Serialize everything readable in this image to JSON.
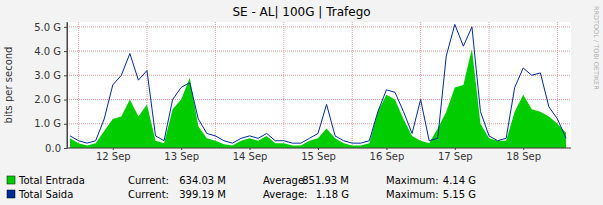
{
  "chart_data": {
    "type": "area",
    "title": "SE - AL| 100G | Trafego",
    "y_label": "bits per second",
    "watermark": "RRDTOOL / TOBI OETIKER",
    "categories": [
      null,
      null,
      null,
      null,
      null,
      "12 Sep",
      null,
      null,
      null,
      null,
      null,
      null,
      null,
      "13 Sep",
      null,
      null,
      null,
      null,
      null,
      null,
      null,
      "14 Sep",
      null,
      null,
      null,
      null,
      null,
      null,
      null,
      "15 Sep",
      null,
      null,
      null,
      null,
      null,
      null,
      null,
      "16 Sep",
      null,
      null,
      null,
      null,
      null,
      null,
      null,
      "17 Sep",
      null,
      null,
      null,
      null,
      null,
      null,
      null,
      "18 Sep",
      null,
      null,
      null,
      null,
      null
    ],
    "series": [
      {
        "name": "Total Entrada",
        "type": "area",
        "color": "#00cc00",
        "values": [
          0.4,
          0.2,
          0.1,
          0.2,
          0.7,
          1.2,
          1.3,
          2.0,
          1.3,
          1.8,
          0.3,
          0.2,
          1.6,
          2.0,
          2.9,
          0.9,
          0.4,
          0.3,
          0.15,
          0.1,
          0.3,
          0.4,
          0.3,
          0.5,
          0.2,
          0.2,
          0.1,
          0.1,
          0.3,
          0.4,
          0.8,
          0.4,
          0.2,
          0.1,
          0.1,
          0.2,
          1.5,
          2.2,
          2.0,
          1.2,
          0.5,
          0.3,
          0.2,
          0.8,
          1.5,
          2.5,
          2.6,
          4.1,
          1.0,
          0.4,
          0.3,
          0.3,
          1.5,
          2.2,
          1.6,
          1.5,
          1.3,
          1.0,
          0.63
        ],
        "stats": [
          "634.03 M",
          "851.93 M",
          "4.14 G"
        ]
      },
      {
        "name": "Total Saida",
        "type": "line",
        "color": "#002a97",
        "values": [
          0.5,
          0.3,
          0.2,
          0.3,
          1.2,
          2.6,
          3.0,
          3.9,
          2.8,
          3.2,
          0.5,
          0.3,
          2.0,
          2.5,
          2.7,
          1.2,
          0.6,
          0.5,
          0.3,
          0.2,
          0.4,
          0.5,
          0.4,
          0.6,
          0.3,
          0.3,
          0.2,
          0.2,
          0.4,
          0.6,
          1.8,
          0.5,
          0.3,
          0.2,
          0.2,
          0.3,
          1.5,
          2.4,
          2.3,
          1.5,
          0.6,
          2.0,
          0.3,
          0.4,
          3.8,
          5.1,
          4.2,
          5.0,
          1.5,
          0.5,
          0.3,
          0.4,
          2.5,
          3.3,
          3.0,
          3.1,
          1.7,
          1.2,
          0.4
        ],
        "stats": [
          "399.19 M",
          "1.18 G",
          "5.15 G"
        ]
      }
    ],
    "stat_labels": [
      "Current:",
      "Average:",
      "Maximum:"
    ],
    "ylim": [
      0,
      5.2
    ],
    "yticks": [
      {
        "value": 0,
        "label": "0.0"
      },
      {
        "value": 1,
        "label": "1.0 G"
      },
      {
        "value": 2,
        "label": "2.0 G"
      },
      {
        "value": 3,
        "label": "3.0 G"
      },
      {
        "value": 4,
        "label": "4.0 G"
      },
      {
        "value": 5,
        "label": "5.0 G"
      }
    ],
    "grid": true
  }
}
